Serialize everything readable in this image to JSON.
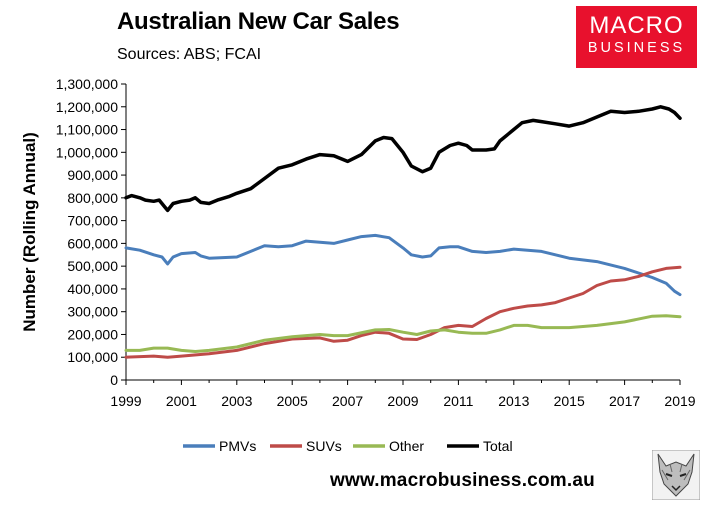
{
  "header": {
    "title": "Australian New Car Sales",
    "subtitle": "Sources: ABS; FCAI"
  },
  "logo": {
    "line1": "MACRO",
    "line2": "BUSINESS",
    "color": "#e8112d"
  },
  "footer": {
    "website": "www.macrobusiness.com.au"
  },
  "chart_data": {
    "type": "line",
    "title": "Australian New Car Sales",
    "xlabel": "",
    "ylabel": "Number (Rolling Annual)",
    "xlim": [
      1999,
      2019
    ],
    "ylim": [
      0,
      1300000
    ],
    "x_ticks": [
      "1999",
      "2001",
      "2003",
      "2005",
      "2007",
      "2009",
      "2011",
      "2013",
      "2015",
      "2017",
      "2019"
    ],
    "y_ticks": [
      "0",
      "100,000",
      "200,000",
      "300,000",
      "400,000",
      "500,000",
      "600,000",
      "700,000",
      "800,000",
      "900,000",
      "1,000,000",
      "1,100,000",
      "1,200,000",
      "1,300,000"
    ],
    "grid": false,
    "legend_position": "bottom",
    "series": [
      {
        "name": "PMVs",
        "color": "#4a7ebb",
        "points": [
          [
            1999,
            580000
          ],
          [
            1999.5,
            570000
          ],
          [
            2000,
            550000
          ],
          [
            2000.3,
            540000
          ],
          [
            2000.5,
            510000
          ],
          [
            2000.7,
            540000
          ],
          [
            2001,
            555000
          ],
          [
            2001.5,
            560000
          ],
          [
            2001.7,
            545000
          ],
          [
            2002,
            535000
          ],
          [
            2003,
            540000
          ],
          [
            2003.5,
            565000
          ],
          [
            2004,
            590000
          ],
          [
            2004.5,
            585000
          ],
          [
            2005,
            590000
          ],
          [
            2005.5,
            610000
          ],
          [
            2006,
            605000
          ],
          [
            2006.5,
            600000
          ],
          [
            2007,
            615000
          ],
          [
            2007.5,
            630000
          ],
          [
            2008,
            635000
          ],
          [
            2008.5,
            625000
          ],
          [
            2009,
            580000
          ],
          [
            2009.3,
            550000
          ],
          [
            2009.7,
            540000
          ],
          [
            2010,
            545000
          ],
          [
            2010.3,
            580000
          ],
          [
            2010.7,
            585000
          ],
          [
            2011,
            585000
          ],
          [
            2011.5,
            565000
          ],
          [
            2012,
            560000
          ],
          [
            2012.5,
            565000
          ],
          [
            2013,
            575000
          ],
          [
            2013.5,
            570000
          ],
          [
            2014,
            565000
          ],
          [
            2014.5,
            550000
          ],
          [
            2015,
            535000
          ],
          [
            2016,
            520000
          ],
          [
            2017,
            490000
          ],
          [
            2017.5,
            470000
          ],
          [
            2018,
            450000
          ],
          [
            2018.5,
            425000
          ],
          [
            2018.8,
            390000
          ],
          [
            2019,
            375000
          ]
        ]
      },
      {
        "name": "SUVs",
        "color": "#be4b48",
        "points": [
          [
            1999,
            100000
          ],
          [
            2000,
            105000
          ],
          [
            2000.5,
            100000
          ],
          [
            2001,
            105000
          ],
          [
            2002,
            115000
          ],
          [
            2003,
            130000
          ],
          [
            2004,
            160000
          ],
          [
            2005,
            180000
          ],
          [
            2006,
            185000
          ],
          [
            2006.5,
            170000
          ],
          [
            2007,
            175000
          ],
          [
            2007.5,
            195000
          ],
          [
            2008,
            210000
          ],
          [
            2008.5,
            205000
          ],
          [
            2009,
            180000
          ],
          [
            2009.5,
            178000
          ],
          [
            2010,
            200000
          ],
          [
            2010.5,
            230000
          ],
          [
            2011,
            240000
          ],
          [
            2011.5,
            235000
          ],
          [
            2012,
            270000
          ],
          [
            2012.5,
            300000
          ],
          [
            2013,
            315000
          ],
          [
            2013.5,
            325000
          ],
          [
            2014,
            330000
          ],
          [
            2014.5,
            340000
          ],
          [
            2015,
            360000
          ],
          [
            2015.5,
            380000
          ],
          [
            2016,
            415000
          ],
          [
            2016.5,
            435000
          ],
          [
            2017,
            440000
          ],
          [
            2017.5,
            455000
          ],
          [
            2018,
            475000
          ],
          [
            2018.5,
            490000
          ],
          [
            2019,
            495000
          ]
        ]
      },
      {
        "name": "Other",
        "color": "#98b954",
        "points": [
          [
            1999,
            130000
          ],
          [
            1999.5,
            130000
          ],
          [
            2000,
            140000
          ],
          [
            2000.5,
            140000
          ],
          [
            2001,
            130000
          ],
          [
            2001.5,
            125000
          ],
          [
            2002,
            130000
          ],
          [
            2003,
            145000
          ],
          [
            2004,
            175000
          ],
          [
            2005,
            190000
          ],
          [
            2006,
            200000
          ],
          [
            2006.5,
            195000
          ],
          [
            2007,
            195000
          ],
          [
            2008,
            220000
          ],
          [
            2008.5,
            222000
          ],
          [
            2009,
            210000
          ],
          [
            2009.5,
            200000
          ],
          [
            2010,
            215000
          ],
          [
            2010.5,
            220000
          ],
          [
            2011,
            210000
          ],
          [
            2011.5,
            205000
          ],
          [
            2012,
            205000
          ],
          [
            2012.5,
            220000
          ],
          [
            2013,
            240000
          ],
          [
            2013.5,
            240000
          ],
          [
            2014,
            230000
          ],
          [
            2015,
            230000
          ],
          [
            2016,
            240000
          ],
          [
            2017,
            255000
          ],
          [
            2018,
            280000
          ],
          [
            2018.5,
            282000
          ],
          [
            2019,
            278000
          ]
        ]
      },
      {
        "name": "Total",
        "color": "#000000",
        "points": [
          [
            1999,
            800000
          ],
          [
            1999.2,
            810000
          ],
          [
            1999.5,
            800000
          ],
          [
            1999.7,
            790000
          ],
          [
            2000,
            785000
          ],
          [
            2000.2,
            790000
          ],
          [
            2000.4,
            760000
          ],
          [
            2000.5,
            745000
          ],
          [
            2000.7,
            775000
          ],
          [
            2001,
            785000
          ],
          [
            2001.3,
            790000
          ],
          [
            2001.5,
            800000
          ],
          [
            2001.7,
            780000
          ],
          [
            2002,
            775000
          ],
          [
            2002.3,
            790000
          ],
          [
            2002.7,
            805000
          ],
          [
            2003,
            820000
          ],
          [
            2003.5,
            840000
          ],
          [
            2004,
            885000
          ],
          [
            2004.5,
            930000
          ],
          [
            2005,
            945000
          ],
          [
            2005.5,
            970000
          ],
          [
            2006,
            990000
          ],
          [
            2006.5,
            985000
          ],
          [
            2007,
            960000
          ],
          [
            2007.5,
            990000
          ],
          [
            2008,
            1050000
          ],
          [
            2008.3,
            1065000
          ],
          [
            2008.6,
            1060000
          ],
          [
            2009,
            1000000
          ],
          [
            2009.3,
            940000
          ],
          [
            2009.7,
            915000
          ],
          [
            2010,
            930000
          ],
          [
            2010.3,
            1000000
          ],
          [
            2010.7,
            1030000
          ],
          [
            2011,
            1040000
          ],
          [
            2011.3,
            1030000
          ],
          [
            2011.5,
            1010000
          ],
          [
            2012,
            1010000
          ],
          [
            2012.3,
            1015000
          ],
          [
            2012.5,
            1050000
          ],
          [
            2013,
            1100000
          ],
          [
            2013.3,
            1130000
          ],
          [
            2013.7,
            1140000
          ],
          [
            2014,
            1135000
          ],
          [
            2014.5,
            1125000
          ],
          [
            2015,
            1115000
          ],
          [
            2015.5,
            1130000
          ],
          [
            2016,
            1155000
          ],
          [
            2016.5,
            1180000
          ],
          [
            2017,
            1175000
          ],
          [
            2017.5,
            1180000
          ],
          [
            2018,
            1190000
          ],
          [
            2018.3,
            1200000
          ],
          [
            2018.6,
            1190000
          ],
          [
            2018.8,
            1175000
          ],
          [
            2019,
            1150000
          ]
        ]
      }
    ]
  }
}
